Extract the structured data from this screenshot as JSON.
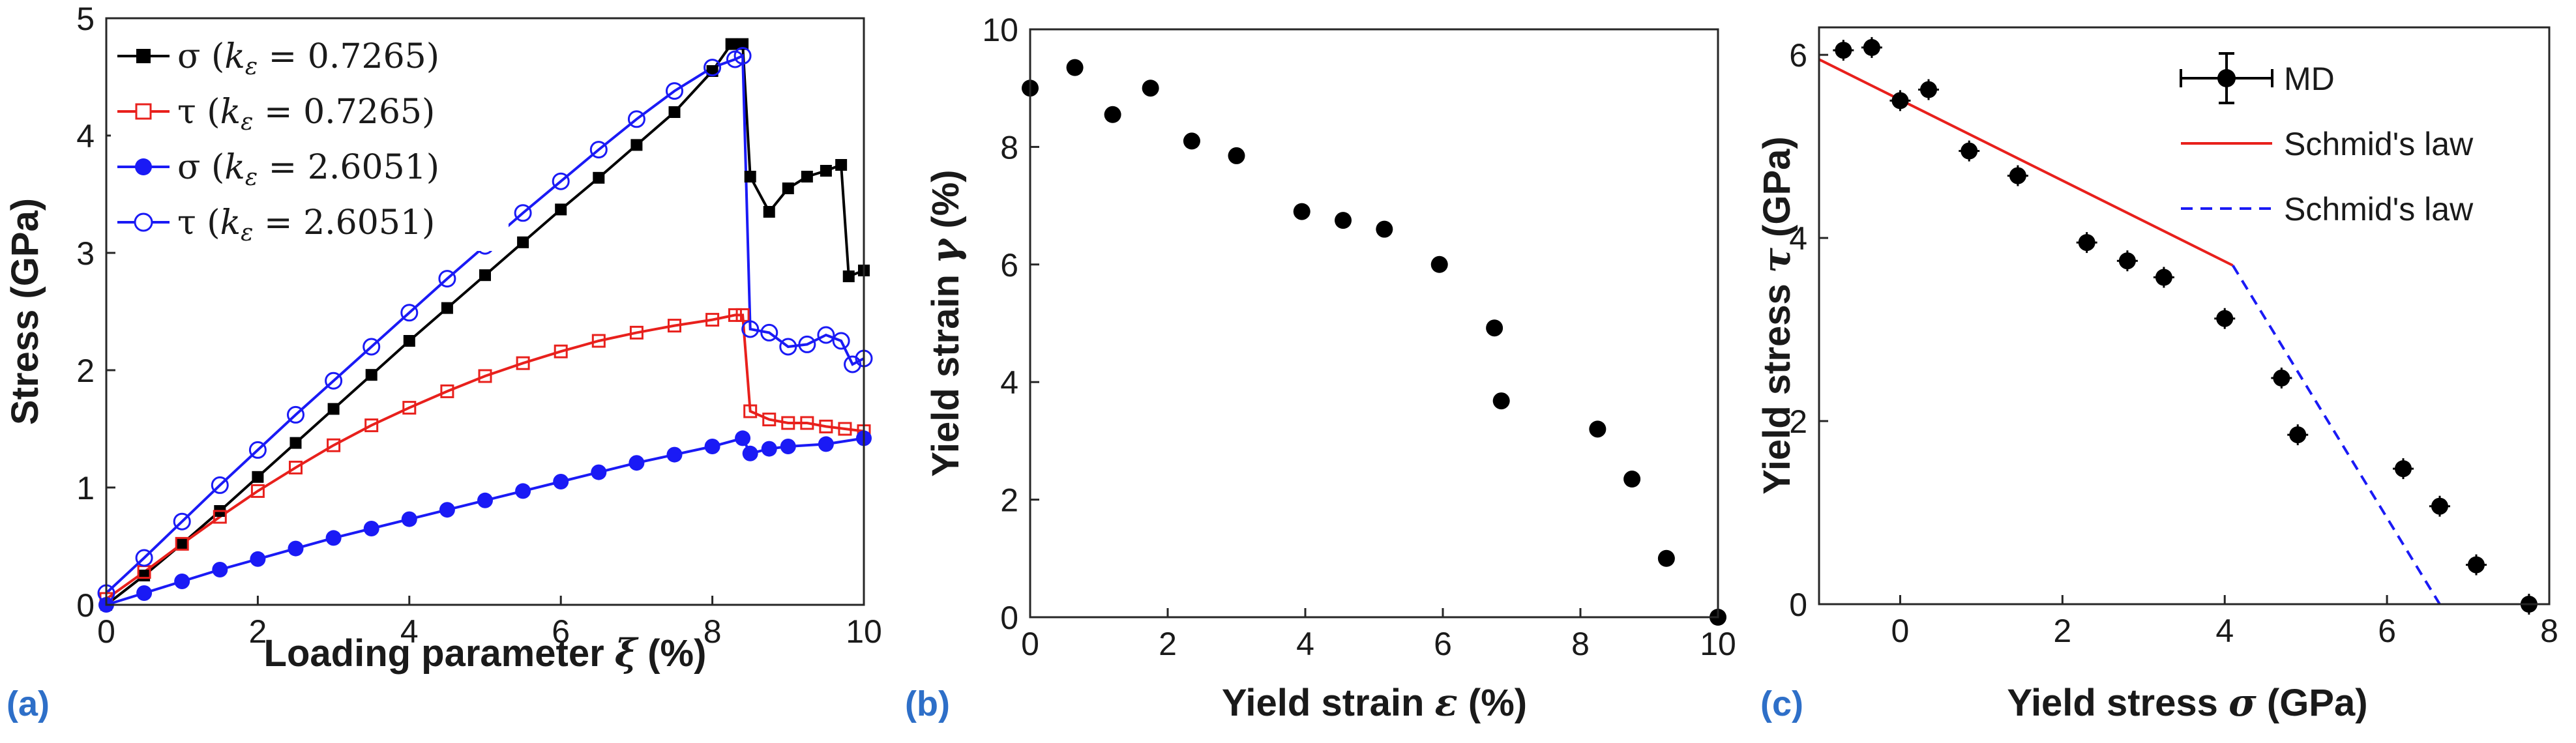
{
  "chart_data": [
    {
      "type": "line",
      "panel_label": "(a)",
      "xlabel": "Loading parameter ξ (%)",
      "ylabel": "Stress (GPa)",
      "xlim": [
        0,
        10
      ],
      "ylim": [
        0,
        5
      ],
      "xticks": [
        0,
        2,
        4,
        6,
        8,
        10
      ],
      "yticks": [
        0,
        1,
        2,
        3,
        4,
        5
      ],
      "legend_position": "top-left",
      "series": [
        {
          "name": "σ (kε = 0.7265)",
          "color": "#000000",
          "marker": "filled-square",
          "x": [
            0,
            0.5,
            1,
            1.5,
            2,
            2.5,
            3,
            3.5,
            4,
            4.5,
            5,
            5.5,
            6,
            6.5,
            7,
            7.5,
            8,
            8.25,
            8.4,
            8.5,
            8.75,
            9,
            9.25,
            9.5,
            9.7,
            9.8,
            10
          ],
          "y": [
            0,
            0.25,
            0.52,
            0.8,
            1.09,
            1.38,
            1.67,
            1.96,
            2.25,
            2.53,
            2.81,
            3.09,
            3.37,
            3.64,
            3.92,
            4.2,
            4.55,
            4.78,
            4.78,
            3.65,
            3.35,
            3.55,
            3.65,
            3.7,
            3.75,
            2.8,
            2.85
          ]
        },
        {
          "name": "τ (kε = 0.7265)",
          "color": "#e8201c",
          "marker": "open-square",
          "x": [
            0,
            0.5,
            1,
            1.5,
            2,
            2.5,
            3,
            3.5,
            4,
            4.5,
            5,
            5.5,
            6,
            6.5,
            7,
            7.5,
            8,
            8.3,
            8.4,
            8.5,
            8.75,
            9,
            9.25,
            9.5,
            9.75,
            10
          ],
          "y": [
            0.05,
            0.28,
            0.52,
            0.75,
            0.97,
            1.17,
            1.36,
            1.53,
            1.68,
            1.82,
            1.95,
            2.06,
            2.16,
            2.25,
            2.32,
            2.38,
            2.43,
            2.47,
            2.47,
            1.65,
            1.58,
            1.55,
            1.55,
            1.52,
            1.5,
            1.48
          ]
        },
        {
          "name": "σ (kε = 2.6051)",
          "color": "#1a1af5",
          "marker": "filled-circle",
          "x": [
            0,
            0.5,
            1,
            1.5,
            2,
            2.5,
            3,
            3.5,
            4,
            4.5,
            5,
            5.5,
            6,
            6.5,
            7,
            7.5,
            8,
            8.4,
            8.5,
            8.75,
            9,
            9.5,
            10
          ],
          "y": [
            0,
            0.1,
            0.2,
            0.3,
            0.39,
            0.48,
            0.57,
            0.65,
            0.73,
            0.81,
            0.89,
            0.97,
            1.05,
            1.13,
            1.21,
            1.28,
            1.35,
            1.42,
            1.29,
            1.33,
            1.35,
            1.37,
            1.42
          ]
        },
        {
          "name": "τ (kε = 2.6051)",
          "color": "#1a1af5",
          "marker": "open-circle",
          "x": [
            0,
            0.5,
            1,
            1.5,
            2,
            2.5,
            3,
            3.5,
            4,
            4.5,
            5,
            5.5,
            6,
            6.5,
            7,
            7.5,
            8,
            8.3,
            8.4,
            8.5,
            8.75,
            9,
            9.25,
            9.5,
            9.7,
            9.85,
            10
          ],
          "y": [
            0.1,
            0.4,
            0.71,
            1.02,
            1.32,
            1.62,
            1.91,
            2.2,
            2.49,
            2.78,
            3.06,
            3.34,
            3.61,
            3.88,
            4.14,
            4.38,
            4.58,
            4.65,
            4.68,
            2.35,
            2.32,
            2.2,
            2.22,
            2.3,
            2.25,
            2.05,
            2.1
          ]
        }
      ]
    },
    {
      "type": "scatter",
      "panel_label": "(b)",
      "xlabel": "Yield strain ε (%)",
      "ylabel": "Yield strain γ (%)",
      "xlim": [
        0,
        10
      ],
      "ylim": [
        0,
        10
      ],
      "xticks": [
        0,
        2,
        4,
        6,
        8,
        10
      ],
      "yticks": [
        0,
        2,
        4,
        6,
        8,
        10
      ],
      "series": [
        {
          "name": "yield-strain",
          "color": "#000000",
          "marker": "filled-circle",
          "x": [
            0,
            0.65,
            1.2,
            1.75,
            2.35,
            3.0,
            3.95,
            4.55,
            5.15,
            5.95,
            6.75,
            6.85,
            8.25,
            8.75,
            9.25,
            10.0
          ],
          "y": [
            9.0,
            9.35,
            8.55,
            9.0,
            8.1,
            7.85,
            6.9,
            6.75,
            6.6,
            6.0,
            4.92,
            3.68,
            3.2,
            2.35,
            1.0,
            0.0
          ]
        }
      ]
    },
    {
      "type": "scatter",
      "panel_label": "(c)",
      "xlabel": "Yield stress σ (GPa)",
      "ylabel": "Yield stress τ (GPa)",
      "xlim": [
        -1,
        8
      ],
      "ylim": [
        0,
        6.3
      ],
      "xticks": [
        0,
        2,
        4,
        6,
        8
      ],
      "yticks": [
        0,
        2,
        4,
        6
      ],
      "legend_position": "top-right",
      "legend": [
        "MD",
        "Schmid's law",
        "Schmid's law"
      ],
      "series": [
        {
          "name": "MD",
          "color": "#000000",
          "marker": "filled-circle-errorbar",
          "x": [
            -0.7,
            -0.35,
            0.0,
            0.35,
            0.85,
            1.45,
            2.3,
            2.8,
            3.25,
            4.0,
            4.7,
            4.9,
            6.2,
            6.65,
            7.1,
            7.75
          ],
          "y": [
            6.05,
            6.08,
            5.5,
            5.62,
            4.95,
            4.68,
            3.95,
            3.75,
            3.57,
            3.12,
            2.47,
            1.85,
            1.48,
            1.07,
            0.43,
            0.0
          ]
        },
        {
          "name": "Schmid's law",
          "color": "#e8201c",
          "style": "solid",
          "x": [
            -1.0,
            4.1
          ],
          "y": [
            5.95,
            3.7
          ]
        },
        {
          "name": "Schmid's law",
          "color": "#1a1af5",
          "style": "dashed",
          "x": [
            4.1,
            6.65
          ],
          "y": [
            3.7,
            0.0
          ]
        }
      ]
    }
  ]
}
